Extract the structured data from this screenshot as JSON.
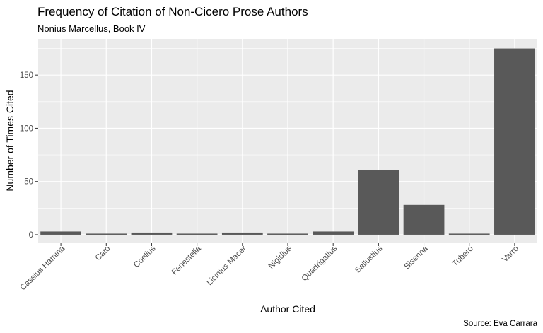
{
  "chart_data": {
    "type": "bar",
    "title": "Frequency of Citation of Non-Cicero Prose Authors",
    "subtitle": "Nonius Marcellus, Book IV",
    "xlabel": "Author Cited",
    "ylabel": "Number of Times Cited",
    "caption": "Source: Eva Carrara",
    "categories": [
      "Cassius Hamina",
      "Cato",
      "Coelius",
      "Fenestella",
      "Licinius Macer",
      "Nigidius",
      "Quadrigatius",
      "Sallustius",
      "Sisenna",
      "Tubero",
      "Varro"
    ],
    "values": [
      3,
      1,
      2,
      1,
      2,
      1,
      3,
      61,
      28,
      1,
      175
    ],
    "ylim": [
      -8,
      184
    ],
    "yticks": [
      0,
      50,
      100,
      150
    ],
    "bar_color": "#595959",
    "panel_color": "#ebebeb",
    "grid": true
  }
}
